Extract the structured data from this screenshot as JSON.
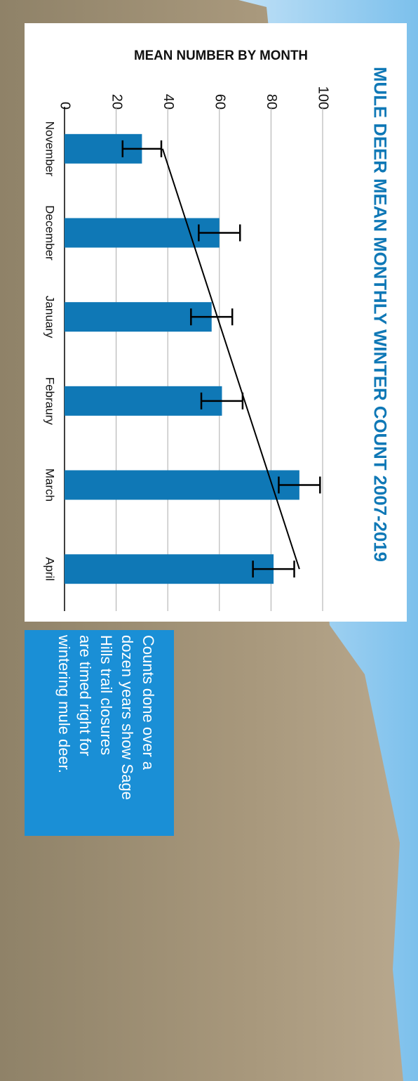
{
  "chart_data": {
    "type": "bar",
    "title": "MULE DEER MEAN MONTHLY WINTER COUNT 2007-2019",
    "y_axis_label": "MEAN NUMBER BY MONTH",
    "categories": [
      "November",
      "December",
      "January",
      "Febraury",
      "March",
      "April"
    ],
    "values": [
      30,
      60,
      57,
      61,
      91,
      81
    ],
    "errors": [
      7.5,
      8,
      8,
      8,
      8,
      8
    ],
    "trendline": [
      38,
      91
    ],
    "color": "#0f78b6",
    "ylim": [
      0,
      100
    ],
    "yticks": [
      0,
      20,
      40,
      60,
      80,
      100
    ],
    "grid": true
  },
  "caption": [
    "Counts done over a",
    "dozen years show Sage",
    "Hills trail closures",
    "are timed right for",
    "wintering mule deer."
  ]
}
